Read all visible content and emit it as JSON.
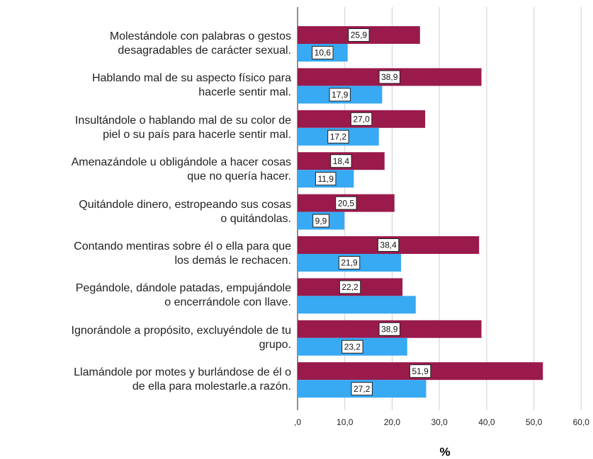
{
  "chart_data": {
    "type": "barh",
    "categories": [
      "Molestándole con palabras o gestos\ndesagradables de carácter sexual.",
      "Hablando mal de su aspecto físico para\nhacerle sentir mal.",
      "Insultándole o hablando mal de su color de\npiel o su país para hacerle sentir mal.",
      "Amenazándole u obligándole a hacer cosas\nque no quería hacer.",
      "Quitándole dinero, estropeando sus cosas\no quitándolas.",
      "Contando mentiras sobre él o ella para que\nlos demás le rechacen.",
      "Pegándole, dándole patadas, empujándole\no encerrándole con llave.",
      "Ignorándole a propósito, excluyéndole de tu\ngrupo.",
      "Llamándole por motes y burlándose de él o\nde ella para molestarle.a razón."
    ],
    "series": [
      {
        "color": "#9a1a4c",
        "values": [
          25.9,
          38.9,
          27.0,
          18.4,
          20.5,
          38.4,
          22.2,
          38.9,
          51.9
        ],
        "value_labels": [
          "25,9",
          "38,9",
          "27,0",
          "18,4",
          "20,5",
          "38,4",
          "22,2",
          "38,9",
          "51,9"
        ]
      },
      {
        "color": "#38a9f3",
        "values": [
          10.6,
          17.9,
          17.2,
          11.9,
          9.9,
          21.9,
          25.0,
          23.2,
          27.2
        ],
        "value_labels": [
          "10,6",
          "17,9",
          "17,2",
          "11,9",
          "9,9",
          "21,9",
          null,
          "23,2",
          "27,2"
        ]
      }
    ],
    "xlim": [
      0,
      62.5
    ],
    "xticks": [
      {
        "value": 0,
        "label": ",0"
      },
      {
        "value": 10,
        "label": "10,0"
      },
      {
        "value": 20,
        "label": "20,0"
      },
      {
        "value": 30,
        "label": "30,0"
      },
      {
        "value": 40,
        "label": "40,0"
      },
      {
        "value": 50,
        "label": "50,0"
      },
      {
        "value": 60,
        "label": "60,0"
      }
    ],
    "xlabel": "%",
    "grid": true
  }
}
